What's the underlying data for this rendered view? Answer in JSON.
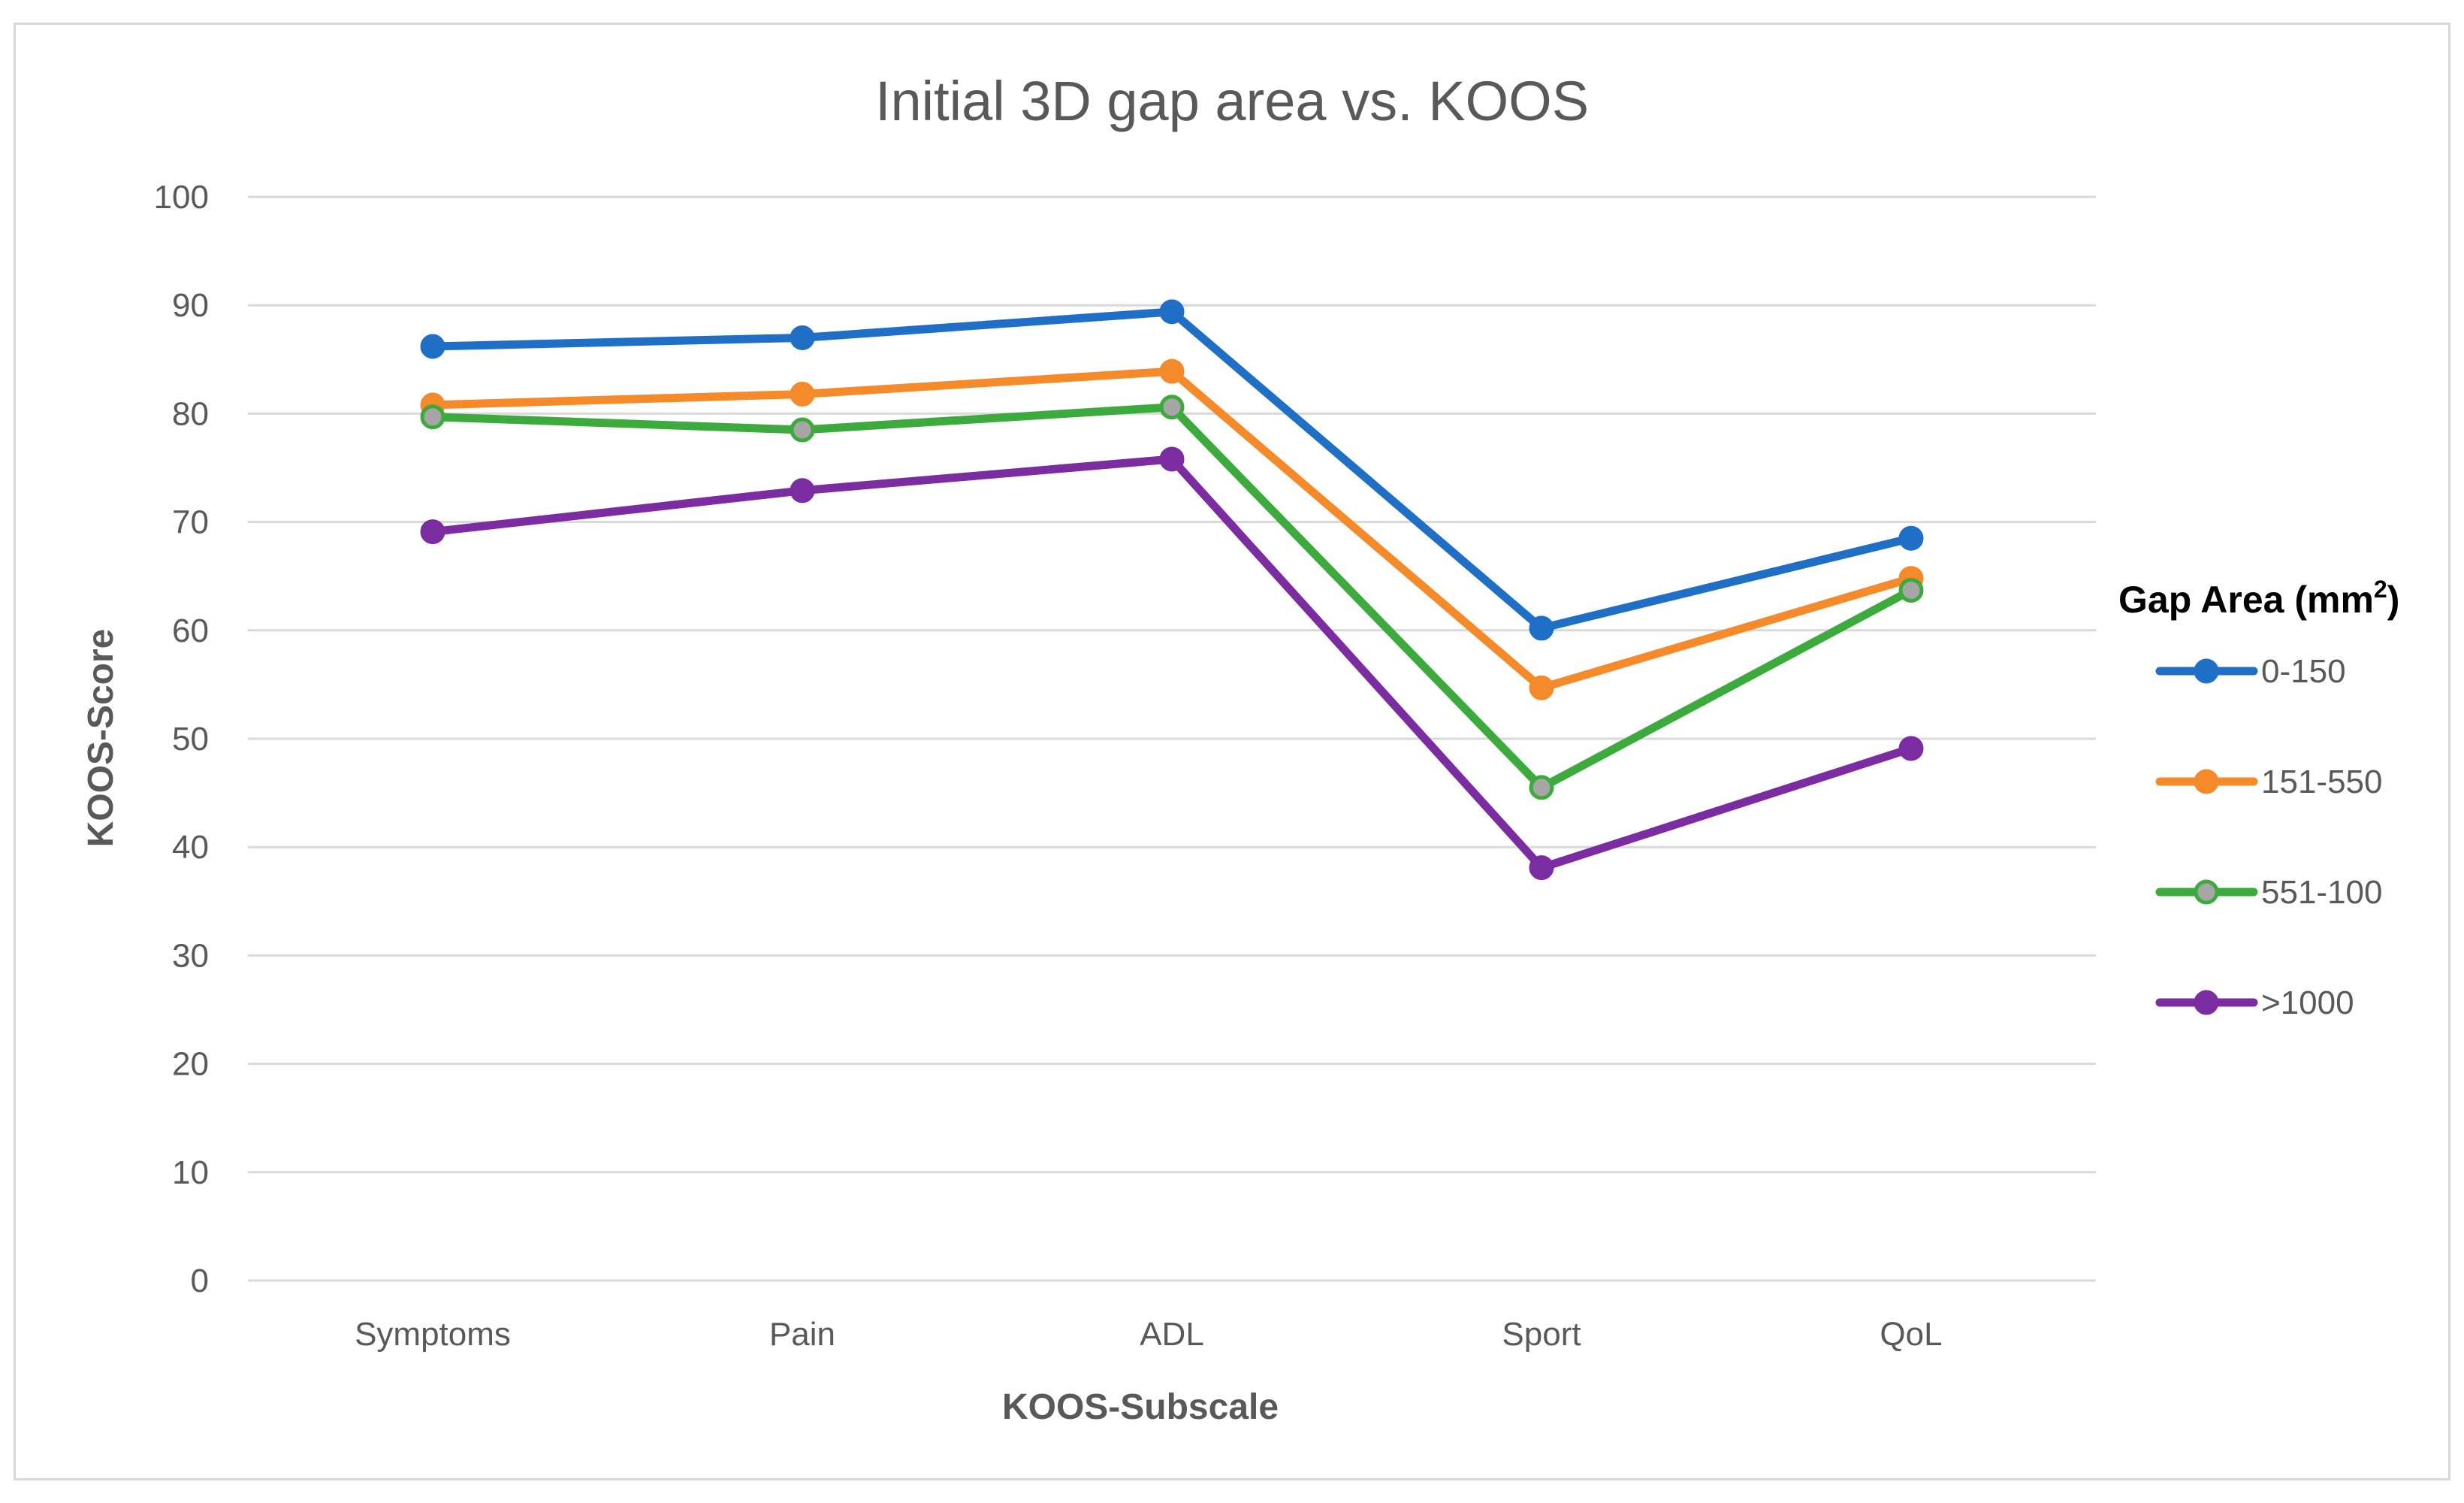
{
  "chart_data": {
    "type": "line",
    "title": "Initial 3D gap area vs. KOOS",
    "xlabel": "KOOS-Subscale",
    "ylabel": "KOOS-Score",
    "ylim": [
      0,
      100
    ],
    "yticks": [
      "0",
      "10",
      "20",
      "30",
      "40",
      "50",
      "60",
      "70",
      "80",
      "90",
      "100"
    ],
    "grid": true,
    "categories": [
      "Symptoms",
      "Pain",
      "ADL",
      "Sport",
      "QoL"
    ],
    "legend": {
      "title": "Gap Area (mm",
      "title_superscript": "2",
      "title_close": ")",
      "position": "right"
    },
    "series": [
      {
        "name": "0-150",
        "values": [
          86.2,
          87.0,
          89.4,
          60.2,
          68.5
        ],
        "color": "#1f6fc6",
        "marker_fill": "#1f6fc6"
      },
      {
        "name": "151-550",
        "values": [
          80.8,
          81.8,
          83.9,
          54.7,
          64.8
        ],
        "color": "#f58a2b",
        "marker_fill": "#f58a2b"
      },
      {
        "name": "551-100",
        "values": [
          79.7,
          78.5,
          80.6,
          45.5,
          63.7
        ],
        "color": "#3daa3d",
        "marker_fill": "#a6a6a6"
      },
      {
        "name": ">1000",
        "values": [
          69.1,
          72.9,
          75.8,
          38.1,
          49.1
        ],
        "color": "#7b2ca0",
        "marker_fill": "#7b2ca0"
      }
    ]
  }
}
